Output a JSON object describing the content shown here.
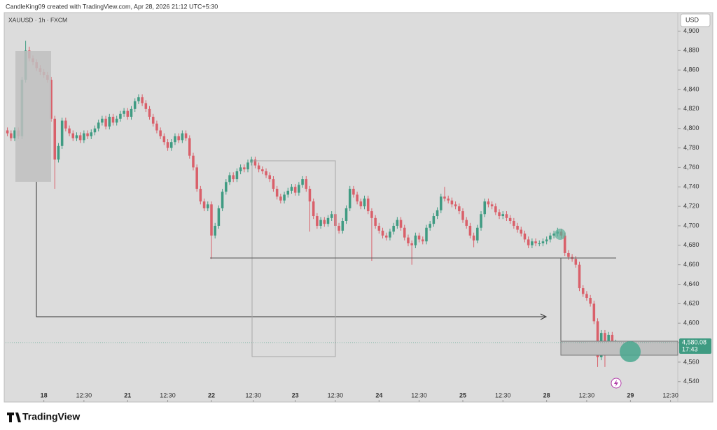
{
  "chart_data": {
    "type": "candlestick",
    "header": "CandleKing09 created with TradingView.com, Apr 28, 2026 21:12 UTC+5:30",
    "symbol": "XAUUSD · 1h · FXCM",
    "currency": "USD",
    "brand": "TradingView",
    "up_color": "#3f9b82",
    "down_color": "#d9606a",
    "last_price": {
      "value": 4580.08,
      "label": "4,580.08"
    },
    "countdown": "17:43",
    "open": [
      4798,
      4795,
      4790,
      4798,
      4792,
      4850,
      4880,
      4872,
      4868,
      4862,
      4858,
      4855,
      4850,
      4810,
      4768,
      4782,
      4808,
      4800,
      4795,
      4790,
      4793,
      4788,
      4795,
      4792,
      4796,
      4800,
      4806,
      4810,
      4802,
      4812,
      4806,
      4810,
      4815,
      4818,
      4812,
      4820,
      4828,
      4832,
      4826,
      4820,
      4812,
      4805,
      4798,
      4792,
      4786,
      4780,
      4786,
      4792,
      4788,
      4795,
      4790,
      4772,
      4760,
      4738,
      4725,
      4718,
      4722,
      4690,
      4700,
      4718,
      4735,
      4745,
      4752,
      4748,
      4756,
      4760,
      4758,
      4765,
      4768,
      4762,
      4758,
      4756,
      4752,
      4748,
      4738,
      4730,
      4726,
      4732,
      4736,
      4740,
      4734,
      4742,
      4748,
      4738,
      4725,
      4710,
      4700,
      4706,
      4702,
      4708,
      4712,
      4700,
      4695,
      4705,
      4718,
      4738,
      4732,
      4725,
      4720,
      4728,
      4715,
      4708,
      4700,
      4695,
      4690,
      4688,
      4694,
      4700,
      4706,
      4698,
      4688,
      4682,
      4680,
      4690,
      4686,
      4684,
      4698,
      4702,
      4710,
      4716,
      4730,
      4728,
      4726,
      4722,
      4720,
      4715,
      4706,
      4700,
      4690,
      4685,
      4698,
      4712,
      4725,
      4722,
      4720,
      4714,
      4710,
      4712,
      4708,
      4705,
      4700,
      4696,
      4692,
      4686,
      4680,
      4684,
      4682,
      4682,
      4684,
      4686,
      4690,
      4692,
      4694,
      4690,
      4672,
      4668,
      4666,
      4660,
      4636,
      4630,
      4626,
      4620,
      4602,
      4565,
      4590,
      4576,
      4588,
      4578
    ],
    "high": [
      4801,
      4798,
      4801,
      4801,
      4853,
      4890,
      4884,
      4875,
      4871,
      4865,
      4861,
      4858,
      4853,
      4813,
      4785,
      4811,
      4811,
      4803,
      4798,
      4796,
      4796,
      4798,
      4798,
      4799,
      4803,
      4809,
      4813,
      4813,
      4815,
      4815,
      4813,
      4818,
      4821,
      4821,
      4823,
      4831,
      4835,
      4835,
      4829,
      4823,
      4815,
      4808,
      4801,
      4795,
      4789,
      4789,
      4795,
      4795,
      4798,
      4798,
      4793,
      4775,
      4763,
      4741,
      4728,
      4725,
      4725,
      4703,
      4721,
      4738,
      4748,
      4755,
      4755,
      4759,
      4763,
      4763,
      4768,
      4771,
      4771,
      4765,
      4761,
      4759,
      4755,
      4751,
      4741,
      4733,
      4735,
      4739,
      4743,
      4743,
      4745,
      4751,
      4751,
      4741,
      4728,
      4713,
      4709,
      4709,
      4711,
      4715,
      4715,
      4703,
      4708,
      4721,
      4741,
      4741,
      4735,
      4728,
      4731,
      4731,
      4718,
      4711,
      4703,
      4698,
      4693,
      4697,
      4703,
      4709,
      4709,
      4701,
      4691,
      4685,
      4693,
      4693,
      4689,
      4701,
      4705,
      4713,
      4719,
      4733,
      4740,
      4731,
      4729,
      4725,
      4723,
      4718,
      4709,
      4703,
      4693,
      4701,
      4715,
      4728,
      4728,
      4725,
      4723,
      4717,
      4715,
      4715,
      4711,
      4708,
      4703,
      4699,
      4695,
      4689,
      4687,
      4687,
      4685,
      4687,
      4689,
      4693,
      4695,
      4698,
      4697,
      4693,
      4675,
      4671,
      4669,
      4663,
      4639,
      4633,
      4629,
      4623,
      4605,
      4593,
      4593,
      4591,
      4591,
      4583
    ],
    "low": [
      4792,
      4787,
      4787,
      4789,
      4789,
      4847,
      4869,
      4865,
      4859,
      4855,
      4852,
      4847,
      4807,
      4738,
      4765,
      4779,
      4797,
      4792,
      4787,
      4787,
      4785,
      4785,
      4789,
      4789,
      4793,
      4797,
      4803,
      4799,
      4799,
      4803,
      4803,
      4807,
      4812,
      4809,
      4809,
      4817,
      4825,
      4823,
      4817,
      4809,
      4802,
      4795,
      4789,
      4783,
      4777,
      4777,
      4783,
      4785,
      4785,
      4787,
      4769,
      4757,
      4735,
      4722,
      4715,
      4715,
      4666,
      4687,
      4697,
      4715,
      4732,
      4742,
      4745,
      4745,
      4753,
      4755,
      4755,
      4762,
      4759,
      4755,
      4753,
      4749,
      4745,
      4735,
      4727,
      4723,
      4723,
      4729,
      4733,
      4731,
      4731,
      4739,
      4735,
      4694,
      4707,
      4697,
      4697,
      4699,
      4699,
      4705,
      4697,
      4692,
      4692,
      4702,
      4715,
      4729,
      4722,
      4717,
      4717,
      4712,
      4664,
      4697,
      4692,
      4687,
      4685,
      4685,
      4691,
      4697,
      4695,
      4685,
      4679,
      4660,
      4677,
      4683,
      4681,
      4681,
      4695,
      4699,
      4707,
      4713,
      4725,
      4723,
      4719,
      4717,
      4712,
      4703,
      4697,
      4687,
      4678,
      4682,
      4695,
      4709,
      4719,
      4717,
      4711,
      4707,
      4707,
      4705,
      4702,
      4697,
      4693,
      4689,
      4683,
      4677,
      4677,
      4679,
      4679,
      4679,
      4681,
      4683,
      4687,
      4689,
      4687,
      4669,
      4665,
      4663,
      4657,
      4633,
      4627,
      4623,
      4617,
      4599,
      4555,
      4562,
      4555,
      4573,
      4575,
      4575
    ],
    "close": [
      4795,
      4790,
      4798,
      4792,
      4850,
      4880,
      4872,
      4868,
      4862,
      4858,
      4855,
      4850,
      4810,
      4768,
      4782,
      4808,
      4800,
      4795,
      4790,
      4793,
      4788,
      4795,
      4792,
      4796,
      4800,
      4806,
      4810,
      4802,
      4812,
      4806,
      4810,
      4815,
      4818,
      4812,
      4820,
      4828,
      4832,
      4826,
      4820,
      4812,
      4805,
      4798,
      4792,
      4786,
      4780,
      4786,
      4792,
      4788,
      4795,
      4790,
      4772,
      4760,
      4738,
      4725,
      4718,
      4722,
      4690,
      4700,
      4718,
      4735,
      4745,
      4752,
      4748,
      4756,
      4760,
      4758,
      4765,
      4768,
      4762,
      4758,
      4756,
      4752,
      4748,
      4738,
      4730,
      4726,
      4732,
      4736,
      4740,
      4734,
      4742,
      4748,
      4738,
      4725,
      4710,
      4700,
      4706,
      4702,
      4708,
      4712,
      4700,
      4695,
      4705,
      4718,
      4738,
      4732,
      4725,
      4720,
      4728,
      4715,
      4708,
      4700,
      4695,
      4690,
      4688,
      4694,
      4700,
      4706,
      4698,
      4688,
      4682,
      4680,
      4690,
      4686,
      4684,
      4698,
      4702,
      4710,
      4716,
      4730,
      4728,
      4726,
      4722,
      4720,
      4715,
      4706,
      4700,
      4690,
      4685,
      4698,
      4712,
      4725,
      4722,
      4720,
      4714,
      4710,
      4712,
      4708,
      4705,
      4700,
      4696,
      4692,
      4686,
      4680,
      4684,
      4682,
      4682,
      4684,
      4686,
      4690,
      4692,
      4694,
      4690,
      4672,
      4668,
      4666,
      4660,
      4636,
      4630,
      4626,
      4620,
      4602,
      4565,
      4590,
      4576,
      4588,
      4578,
      4580.08
    ],
    "xlim": [
      -0.5,
      184
    ],
    "xticks": [
      {
        "value": 10,
        "label": "18"
      },
      {
        "value": 21,
        "label": "12:30"
      },
      {
        "value": 33,
        "label": "21"
      },
      {
        "value": 44,
        "label": "12:30"
      },
      {
        "value": 56,
        "label": "22"
      },
      {
        "value": 67.5,
        "label": "12:30"
      },
      {
        "value": 79,
        "label": "23"
      },
      {
        "value": 90,
        "label": "12:30"
      },
      {
        "value": 102,
        "label": "24"
      },
      {
        "value": 113,
        "label": "12:30"
      },
      {
        "value": 125,
        "label": "25"
      },
      {
        "value": 136,
        "label": "12:30"
      },
      {
        "value": 148,
        "label": "28"
      },
      {
        "value": 159,
        "label": "12:30"
      },
      {
        "value": 171,
        "label": "29"
      },
      {
        "value": 182,
        "label": "12:30"
      }
    ],
    "ylim": [
      4519,
      4919
    ],
    "yticks": [
      {
        "value": 4540,
        "label": "4,540"
      },
      {
        "value": 4560,
        "label": "4,560"
      },
      {
        "value": 4580,
        "label": "4,580"
      },
      {
        "value": 4600,
        "label": "4,600"
      },
      {
        "value": 4620,
        "label": "4,620"
      },
      {
        "value": 4640,
        "label": "4,640"
      },
      {
        "value": 4660,
        "label": "4,660"
      },
      {
        "value": 4680,
        "label": "4,680"
      },
      {
        "value": 4700,
        "label": "4,700"
      },
      {
        "value": 4720,
        "label": "4,720"
      },
      {
        "value": 4740,
        "label": "4,740"
      },
      {
        "value": 4760,
        "label": "4,760"
      },
      {
        "value": 4780,
        "label": "4,780"
      },
      {
        "value": 4800,
        "label": "4,800"
      },
      {
        "value": 4820,
        "label": "4,820"
      },
      {
        "value": 4840,
        "label": "4,840"
      },
      {
        "value": 4860,
        "label": "4,860"
      },
      {
        "value": 4880,
        "label": "4,880"
      },
      {
        "value": 4900,
        "label": "4,900"
      }
    ]
  }
}
